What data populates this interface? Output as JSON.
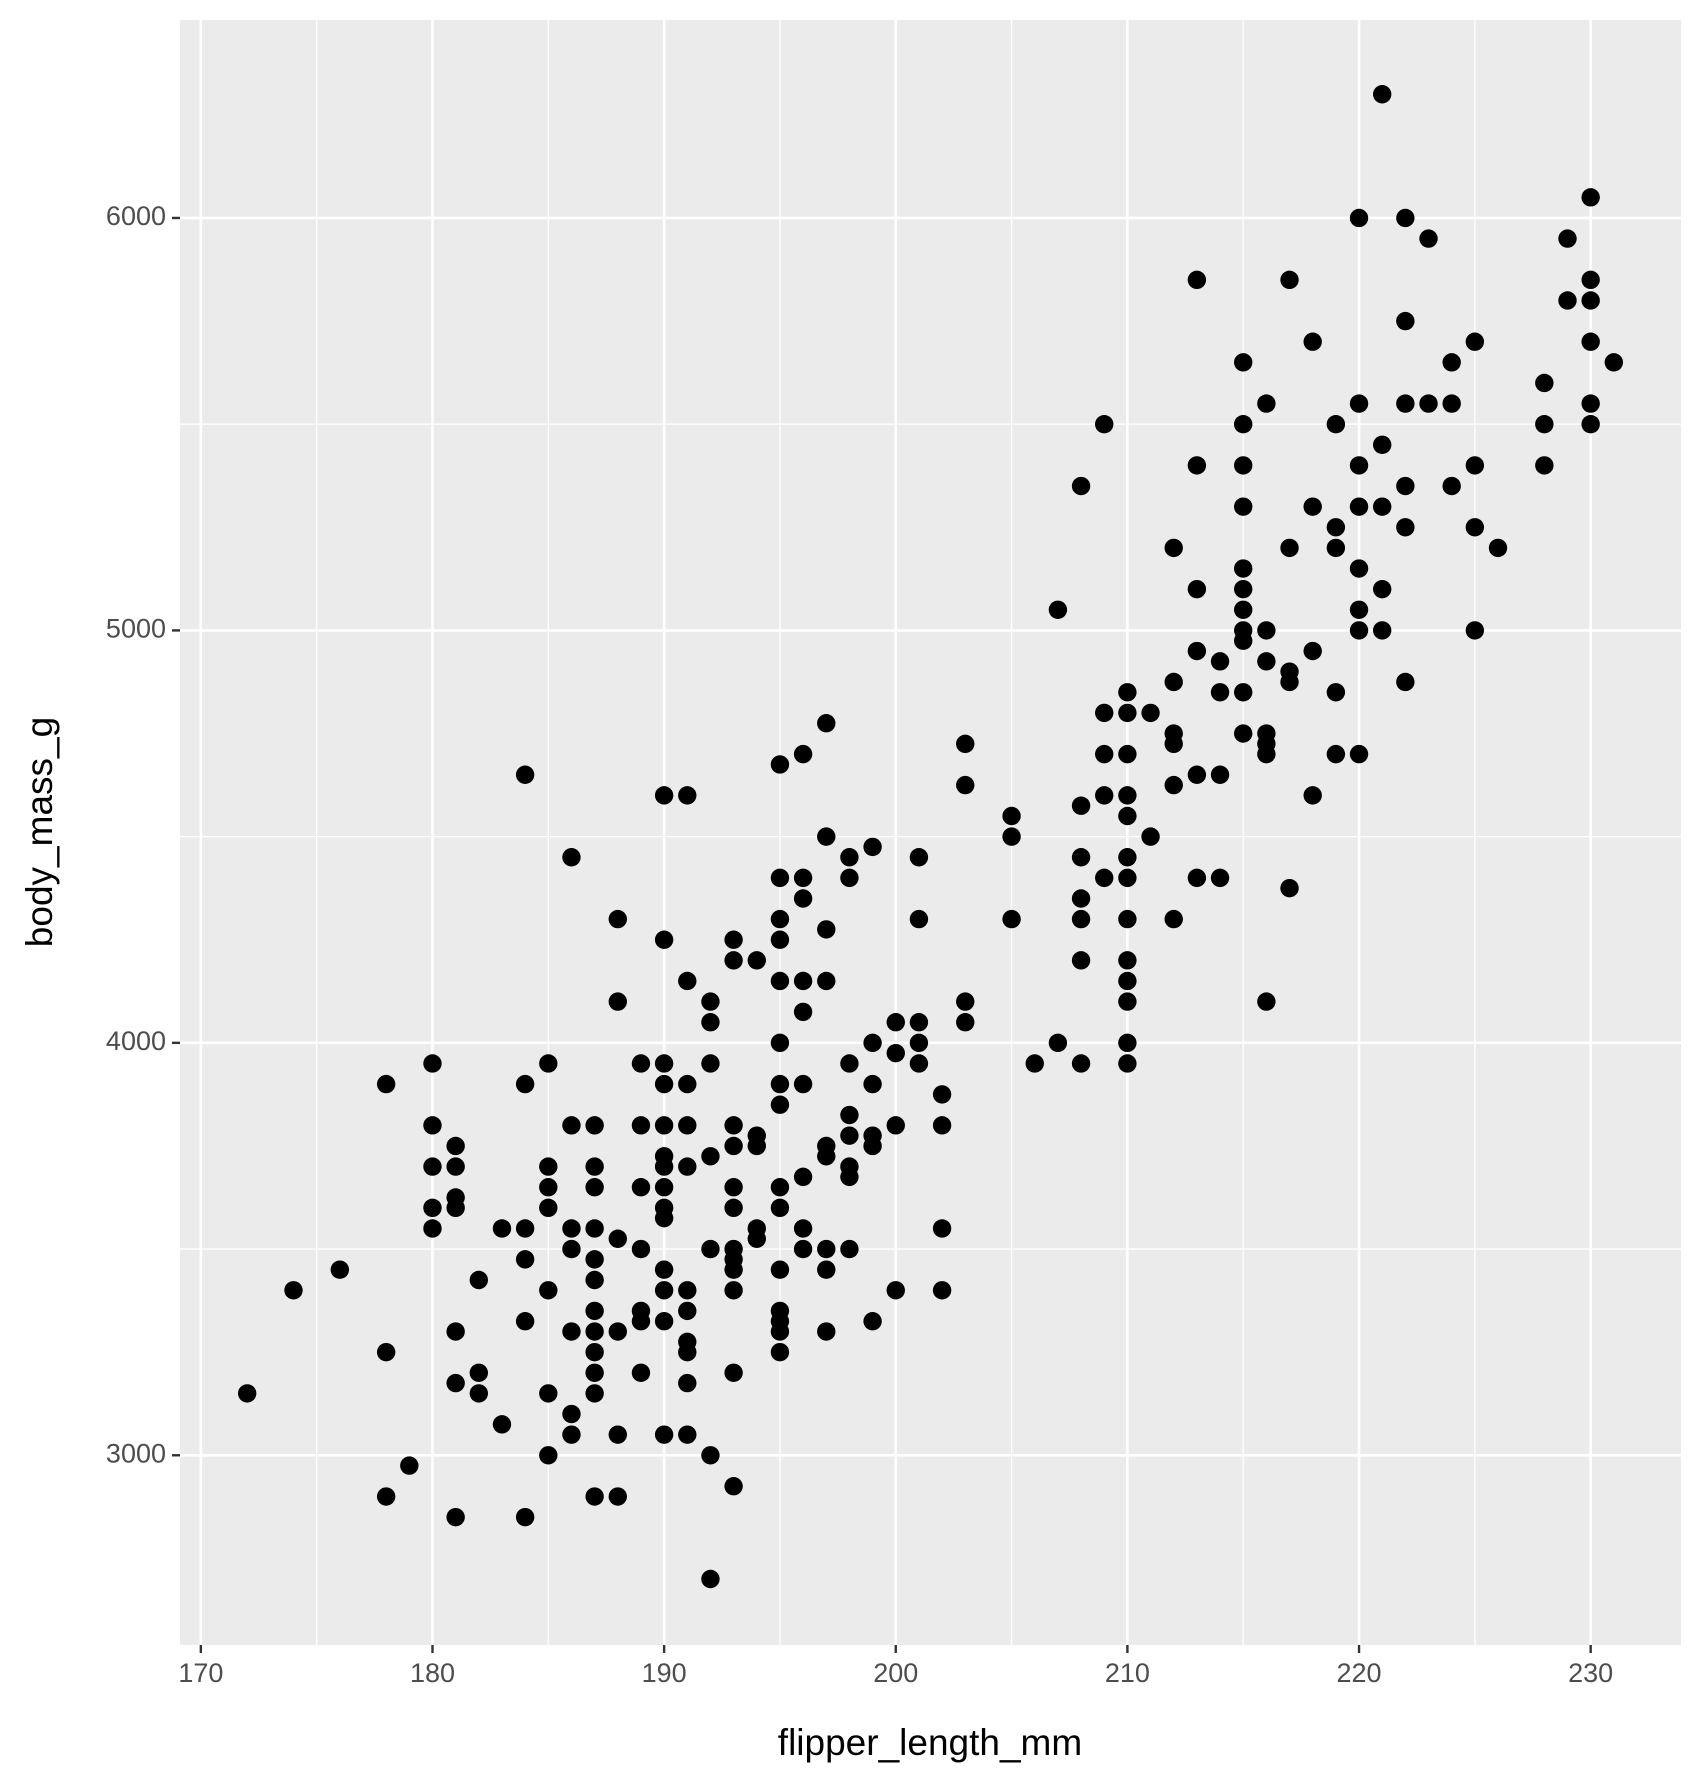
{
  "chart_data": {
    "type": "scatter",
    "x_label": "flipper_length_mm",
    "y_label": "body_mass_g",
    "xlim": [
      169.1,
      233.9
    ],
    "ylim": [
      2540,
      6480
    ],
    "xticks": [
      170,
      180,
      190,
      200,
      210,
      220,
      230
    ],
    "yticks": [
      3000,
      4000,
      5000,
      6000
    ],
    "xminor": [
      175,
      185,
      195,
      205,
      215,
      225
    ],
    "yminor": [
      3500,
      4500,
      5500
    ],
    "grid": true,
    "color": "#000000",
    "background": "#ebebeb",
    "x": [
      172,
      174,
      176,
      178,
      178,
      178,
      179,
      180,
      180,
      180,
      180,
      180,
      181,
      181,
      181,
      181,
      181,
      181,
      181,
      182,
      182,
      182,
      183,
      183,
      184,
      184,
      184,
      184,
      184,
      184,
      185,
      185,
      185,
      185,
      185,
      185,
      185,
      186,
      186,
      186,
      186,
      186,
      186,
      186,
      187,
      187,
      187,
      187,
      187,
      187,
      187,
      187,
      187,
      187,
      187,
      187,
      188,
      188,
      188,
      188,
      188,
      188,
      189,
      189,
      189,
      189,
      189,
      189,
      189,
      190,
      190,
      190,
      190,
      190,
      190,
      190,
      190,
      190,
      190,
      190,
      190,
      190,
      190,
      191,
      191,
      191,
      191,
      191,
      191,
      191,
      191,
      191,
      191,
      191,
      192,
      192,
      192,
      192,
      192,
      192,
      192,
      193,
      193,
      193,
      193,
      193,
      193,
      193,
      193,
      193,
      193,
      193,
      193,
      194,
      194,
      194,
      194,
      194,
      195,
      195,
      195,
      195,
      195,
      195,
      195,
      195,
      195,
      195,
      195,
      195,
      195,
      195,
      195,
      196,
      196,
      196,
      196,
      196,
      196,
      196,
      196,
      196,
      197,
      197,
      197,
      197,
      197,
      197,
      197,
      197,
      197,
      198,
      198,
      198,
      198,
      198,
      198,
      198,
      198,
      199,
      199,
      199,
      199,
      199,
      199,
      200,
      200,
      200,
      200,
      201,
      201,
      201,
      201,
      201,
      202,
      202,
      202,
      202,
      203,
      203,
      203,
      203,
      205,
      205,
      205,
      206,
      207,
      207,
      208,
      208,
      208,
      208,
      208,
      208,
      208,
      209,
      209,
      209,
      209,
      209,
      210,
      210,
      210,
      210,
      210,
      210,
      210,
      210,
      210,
      210,
      210,
      210,
      210,
      211,
      211,
      212,
      212,
      212,
      212,
      212,
      212,
      213,
      213,
      213,
      213,
      213,
      213,
      214,
      214,
      214,
      214,
      215,
      215,
      215,
      215,
      215,
      215,
      215,
      215,
      215,
      215,
      215,
      216,
      216,
      216,
      216,
      216,
      216,
      216,
      217,
      217,
      217,
      217,
      217,
      218,
      218,
      218,
      218,
      219,
      219,
      219,
      219,
      219,
      220,
      220,
      220,
      220,
      220,
      220,
      220,
      220,
      221,
      221,
      221,
      221,
      221,
      222,
      222,
      222,
      222,
      222,
      222,
      223,
      223,
      224,
      224,
      224,
      225,
      225,
      225,
      225,
      226,
      228,
      228,
      228,
      229,
      229,
      230,
      230,
      230,
      230,
      230,
      230,
      231
    ],
    "values": [
      3150,
      3400,
      3450,
      3900,
      3250,
      2900,
      2975,
      3950,
      3800,
      3700,
      3600,
      3550,
      3750,
      3700,
      3625,
      3600,
      3300,
      3175,
      2850,
      3425,
      3200,
      3150,
      3550,
      3075,
      4650,
      3900,
      3550,
      3475,
      3325,
      2850,
      3950,
      3700,
      3650,
      3600,
      3400,
      3150,
      3000,
      4450,
      3800,
      3550,
      3500,
      3300,
      3100,
      3050,
      3800,
      3700,
      3650,
      3550,
      3475,
      3425,
      3350,
      3300,
      3250,
      3200,
      3150,
      2900,
      4300,
      4100,
      3525,
      3300,
      3050,
      2900,
      3950,
      3800,
      3650,
      3500,
      3350,
      3325,
      3200,
      4600,
      4250,
      3950,
      3900,
      3800,
      3725,
      3700,
      3650,
      3600,
      3575,
      3450,
      3400,
      3325,
      3050,
      4600,
      4150,
      3900,
      3800,
      3700,
      3400,
      3350,
      3275,
      3250,
      3175,
      3050,
      4100,
      4050,
      3950,
      3725,
      3500,
      3000,
      2700,
      4250,
      4200,
      3800,
      3750,
      3650,
      3600,
      3500,
      3475,
      3450,
      3400,
      3200,
      2925,
      4200,
      3775,
      3750,
      3550,
      3525,
      4675,
      4400,
      4300,
      4250,
      4150,
      4000,
      3900,
      3850,
      3650,
      3600,
      3450,
      3350,
      3325,
      3300,
      3250,
      4700,
      4400,
      4350,
      4150,
      4075,
      3900,
      3675,
      3550,
      3500,
      4775,
      4500,
      4275,
      4150,
      3750,
      3725,
      3500,
      3450,
      3300,
      4450,
      4400,
      3950,
      3825,
      3775,
      3700,
      3675,
      3500,
      4475,
      4000,
      3900,
      3775,
      3750,
      3325,
      4050,
      3975,
      3800,
      3400,
      4450,
      4300,
      4050,
      4000,
      3950,
      3875,
      3800,
      3550,
      3400,
      4725,
      4625,
      4100,
      4050,
      4550,
      4500,
      4300,
      3950,
      5050,
      4000,
      5350,
      4575,
      4450,
      4350,
      4300,
      4200,
      3950,
      5500,
      4800,
      4700,
      4600,
      4400,
      4850,
      4800,
      4700,
      4600,
      4550,
      4450,
      4400,
      4300,
      4200,
      4150,
      4100,
      4000,
      3950,
      4800,
      4500,
      5200,
      4875,
      4750,
      4725,
      4625,
      4300,
      5850,
      5400,
      5100,
      4950,
      4650,
      4400,
      4925,
      4850,
      4650,
      4400,
      5650,
      5500,
      5400,
      5300,
      5150,
      5100,
      5050,
      5000,
      4975,
      4850,
      4750,
      5550,
      5000,
      4925,
      4750,
      4725,
      4700,
      4100,
      5850,
      5200,
      4900,
      4875,
      4375,
      5700,
      5300,
      4950,
      4600,
      5500,
      5250,
      5200,
      4850,
      4700,
      6000,
      5550,
      5400,
      5300,
      5150,
      5050,
      5000,
      4700,
      6300,
      5450,
      5300,
      5100,
      5000,
      6000,
      5750,
      5550,
      5350,
      5250,
      4875,
      5950,
      5550,
      5650,
      5550,
      5350,
      5700,
      5400,
      5250,
      5000,
      5200,
      5600,
      5500,
      5400,
      5950,
      5800,
      6050,
      5850,
      5800,
      5700,
      5550,
      5500,
      5650
    ]
  }
}
